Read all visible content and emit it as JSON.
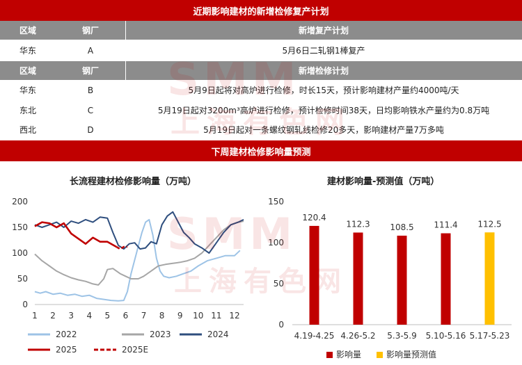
{
  "top_band": {
    "title": "近期影响建材的新增检修复产计划"
  },
  "table": {
    "resume_header": {
      "region": "区域",
      "mill": "钢厂",
      "plan": "新增复产计划"
    },
    "resume_rows": [
      {
        "region": "华东",
        "mill": "A",
        "plan": "5月6日二轧钢1棒复产"
      }
    ],
    "maint_header": {
      "region": "区域",
      "mill": "钢厂",
      "plan": "新增检修计划"
    },
    "maint_rows": [
      {
        "region": "华东",
        "mill": "B",
        "plan": "5月9日起将对高炉进行检修，时长15天，预计影响建材产量约4000吨/天"
      },
      {
        "region": "东北",
        "mill": "C",
        "plan": "5月19日起对3200m³高炉进行检修，预计检修时间38天，日均影响铁水产量约为0.8万吨"
      },
      {
        "region": "西北",
        "mill": "D",
        "plan": "5月19日起对一条螺纹钢轧线检修20多天，影响建材产量7万多吨"
      }
    ]
  },
  "mid_band": {
    "title": "下周建材检修影响量预测"
  },
  "watermark": {
    "top": "SMM",
    "bottom": "上海有色网"
  },
  "colors": {
    "band": "#c00000",
    "header": "#8c8c8c",
    "s2022": "#9dc3e6",
    "s2023": "#a6a6a6",
    "s2024": "#2e4e7e",
    "s2025": "#c00000",
    "bar": "#c00000",
    "forecast": "#ffc000"
  },
  "chart_data": [
    {
      "type": "line",
      "title": "长流程建材检修影响量（万吨）",
      "xlim": [
        1,
        12.5
      ],
      "ylim": [
        0,
        200
      ],
      "xticks": [
        1,
        2,
        3,
        4,
        5,
        6,
        7,
        8,
        9,
        10,
        11,
        12
      ],
      "yticks": [
        0,
        50,
        100,
        150,
        200
      ],
      "grid": false,
      "legend_position": "bottom",
      "series": [
        {
          "name": "2022",
          "color": "#9dc3e6",
          "dash": false,
          "x": [
            1,
            1.3,
            1.6,
            2,
            2.4,
            2.8,
            3.2,
            3.6,
            4,
            4.4,
            4.8,
            5.2,
            5.6,
            5.9,
            6.1,
            6.3,
            6.6,
            6.9,
            7.1,
            7.3,
            7.5,
            7.7,
            7.9,
            8.1,
            8.4,
            8.8,
            9.2,
            9.6,
            10,
            10.5,
            11,
            11.5,
            12,
            12.3
          ],
          "y": [
            25,
            22,
            25,
            20,
            22,
            18,
            20,
            16,
            18,
            12,
            10,
            8,
            7,
            8,
            25,
            60,
            100,
            140,
            160,
            165,
            135,
            90,
            65,
            55,
            52,
            55,
            60,
            65,
            75,
            85,
            90,
            95,
            95,
            105
          ]
        },
        {
          "name": "2023",
          "color": "#a6a6a6",
          "dash": false,
          "x": [
            1,
            1.4,
            1.8,
            2.2,
            2.6,
            3,
            3.4,
            3.8,
            4.2,
            4.5,
            4.8,
            5,
            5.3,
            5.7,
            6,
            6.3,
            6.7,
            7,
            7.4,
            7.8,
            8.2,
            8.6,
            9,
            9.4,
            9.8,
            10.2,
            10.6,
            11,
            11.4,
            11.8,
            12.2,
            12.5
          ],
          "y": [
            98,
            85,
            75,
            65,
            58,
            52,
            48,
            45,
            40,
            38,
            50,
            68,
            70,
            60,
            55,
            50,
            50,
            55,
            65,
            75,
            78,
            80,
            82,
            85,
            90,
            100,
            115,
            130,
            145,
            155,
            160,
            162
          ]
        },
        {
          "name": "2024",
          "color": "#2e4e7e",
          "dash": false,
          "x": [
            1,
            1.4,
            1.8,
            2.2,
            2.6,
            3,
            3.4,
            3.8,
            4.2,
            4.6,
            5,
            5.3,
            5.6,
            5.9,
            6.2,
            6.5,
            6.8,
            7.1,
            7.4,
            7.7,
            8,
            8.3,
            8.6,
            8.9,
            9.2,
            9.5,
            9.8,
            10.2,
            10.6,
            11,
            11.4,
            11.8,
            12.2,
            12.5
          ],
          "y": [
            155,
            150,
            155,
            160,
            150,
            162,
            158,
            165,
            160,
            170,
            168,
            140,
            115,
            108,
            118,
            120,
            108,
            110,
            122,
            118,
            155,
            172,
            180,
            160,
            140,
            130,
            118,
            110,
            100,
            120,
            140,
            155,
            160,
            165
          ]
        },
        {
          "name": "2025",
          "color": "#c00000",
          "dash": false,
          "x": [
            1,
            1.4,
            1.8,
            2.2,
            2.6,
            3,
            3.4,
            3.8,
            4.2,
            4.6,
            5,
            5.2,
            5.5
          ],
          "y": [
            152,
            160,
            158,
            150,
            158,
            138,
            128,
            118,
            130,
            122,
            122,
            118,
            112
          ]
        },
        {
          "name": "2025E",
          "color": "#c00000",
          "dash": true,
          "x": [
            5.5,
            5.7,
            5.9,
            6.1
          ],
          "y": [
            112,
            108,
            112,
            112
          ]
        }
      ]
    },
    {
      "type": "bar",
      "title": "建材影响量-预测值（万吨）",
      "categories": [
        "4.19-4.25",
        "4.26-5.2",
        "5.3-5.9",
        "5.10-5.16",
        "5.17-5.23"
      ],
      "ylim": [
        0,
        150
      ],
      "yticks": [
        0,
        50,
        100,
        150
      ],
      "legend_position": "bottom",
      "series": [
        {
          "name": "影响量",
          "color": "#c00000",
          "values": [
            120.4,
            112.3,
            108.5,
            111.4,
            null
          ],
          "labels": [
            "120.4",
            "112.3",
            "108.5",
            "111.4",
            ""
          ]
        },
        {
          "name": "影响量预测值",
          "color": "#ffc000",
          "values": [
            null,
            null,
            null,
            null,
            112.5
          ],
          "labels": [
            "",
            "",
            "",
            "",
            "112.5"
          ]
        }
      ]
    }
  ]
}
